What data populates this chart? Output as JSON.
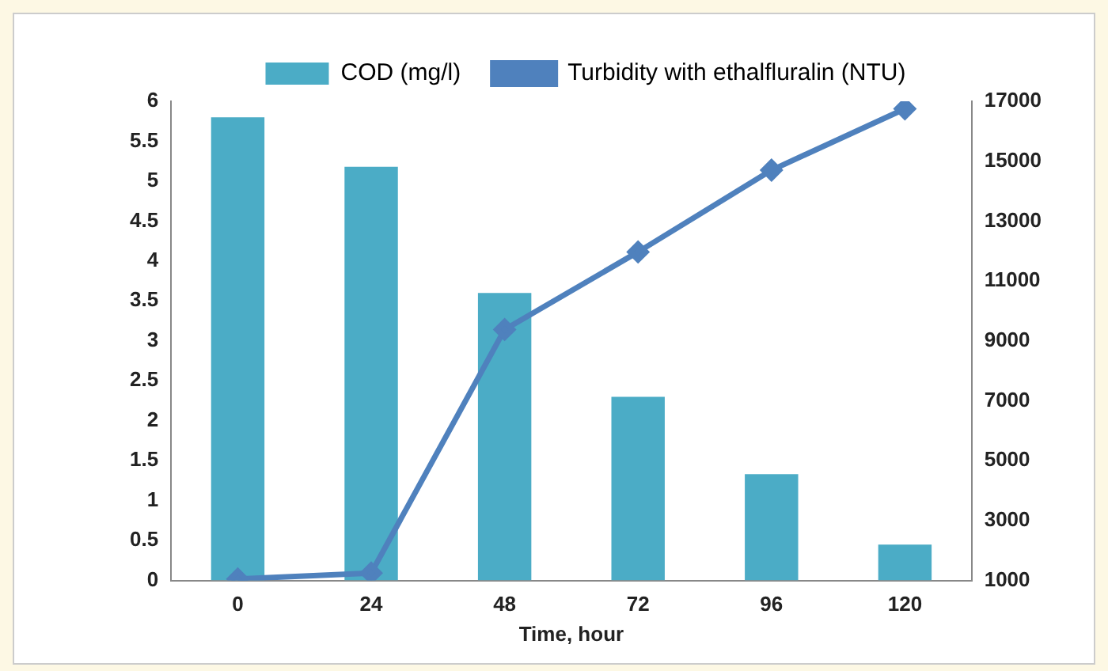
{
  "chart_data": {
    "type": "bar",
    "xlabel": "Time, hour",
    "categories": [
      "0",
      "24",
      "48",
      "72",
      "96",
      "120"
    ],
    "series": [
      {
        "name": "COD (mg/l)",
        "color": "#4bacc6",
        "values": [
          5.8,
          5.18,
          3.6,
          2.3,
          1.33,
          0.45
        ]
      },
      {
        "name": "Turbidity with ethalfluralin (NTU)",
        "type": "line",
        "axis": "y2",
        "color": "#4f81bd",
        "marker": "diamond",
        "values": [
          1050,
          1250,
          9380,
          11970,
          14700,
          16750
        ]
      }
    ],
    "ylim": [
      0,
      6
    ],
    "yticks": [
      0,
      {
        "value": 0.5,
        "label": "0.5"
      },
      1,
      {
        "value": 1.5,
        "label": "1.5"
      },
      2,
      {
        "value": 2.5,
        "label": "2.5"
      },
      3,
      {
        "value": 3.5,
        "label": "3.5"
      },
      4,
      {
        "value": 4.5,
        "label": "4.5"
      },
      5,
      {
        "value": 5.5,
        "label": "5.5"
      },
      6
    ],
    "y2lim": [
      1000,
      17000
    ],
    "y2ticks": [
      1000,
      3000,
      5000,
      7000,
      9000,
      11000,
      13000,
      15000,
      17000
    ],
    "grid": false,
    "legend": "top"
  }
}
